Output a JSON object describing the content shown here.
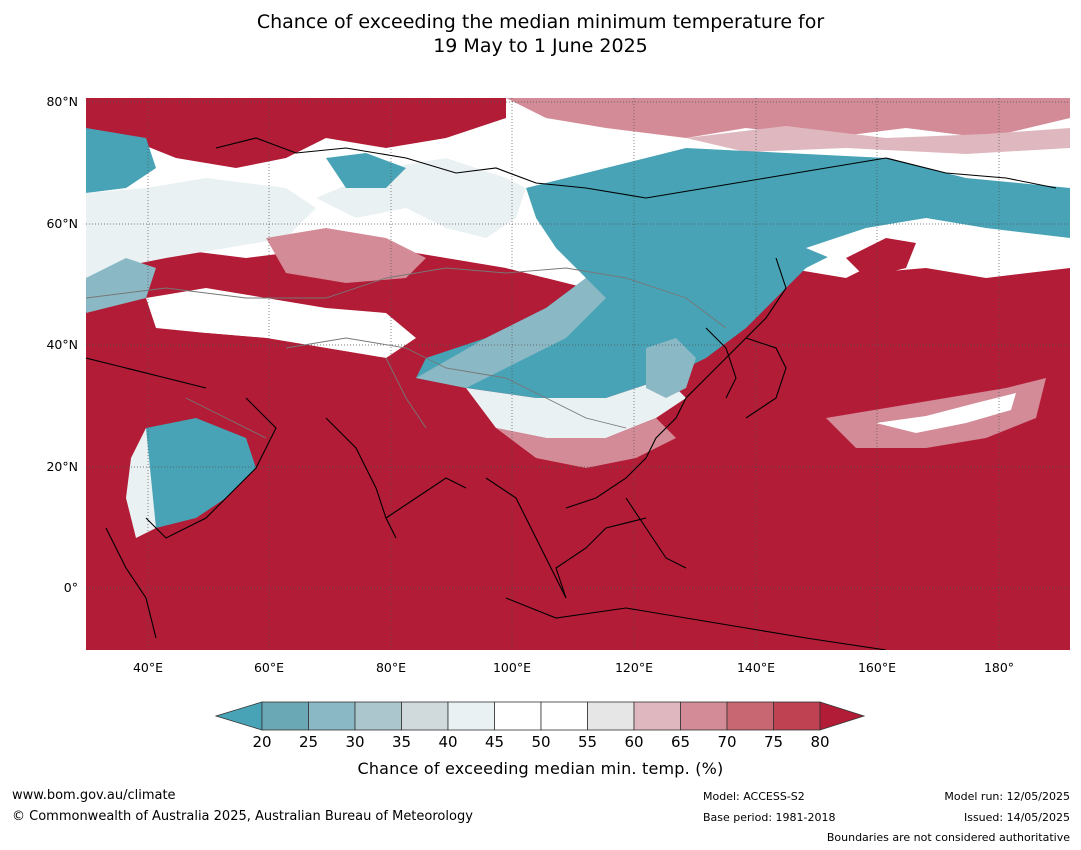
{
  "title": {
    "line1": "Chance of exceeding the median minimum temperature for",
    "line2": "19 May to 1 June 2025"
  },
  "map": {
    "lat_labels": [
      "80°N",
      "60°N",
      "40°N",
      "20°N",
      "0°"
    ],
    "lon_labels": [
      "40°E",
      "60°E",
      "80°E",
      "100°E",
      "120°E",
      "140°E",
      "160°E",
      "180°"
    ],
    "colors": {
      "lt20": "#47a3b5",
      "25": "#6aa8b5",
      "30": "#8ab8c4",
      "35": "#abc6cc",
      "40": "#d0d9dc",
      "45": "#eaf1f3",
      "55": "#ffffff",
      "60": "#e6e6e6",
      "65": "#dfb8bf",
      "70": "#d38b97",
      "75": "#c86672",
      "80": "#bf4252",
      "gt80": "#b21c36"
    }
  },
  "colorbar": {
    "ticks": [
      "20",
      "25",
      "30",
      "35",
      "40",
      "45",
      "50",
      "55",
      "60",
      "65",
      "70",
      "75",
      "80"
    ],
    "label": "Chance of exceeding median min. temp. (%)"
  },
  "footer": {
    "website": "www.bom.gov.au/climate",
    "copyright": "© Commonwealth of Australia 2025, Australian Bureau of Meteorology",
    "model": "Model: ACCESS-S2",
    "base_period": "Base period: 1981-2018",
    "model_run": "Model run: 12/05/2025",
    "issued": "Issued: 14/05/2025",
    "disclaimer": "Boundaries are not considered authoritative"
  }
}
